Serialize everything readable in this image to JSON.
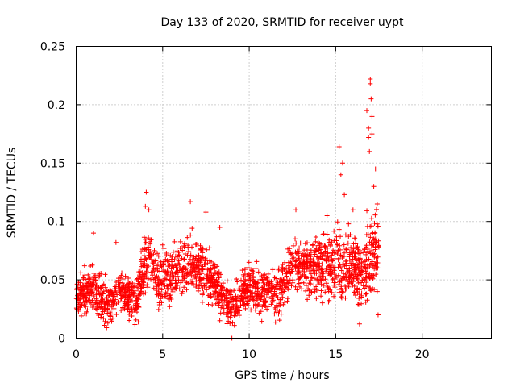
{
  "chart_data": {
    "type": "scatter",
    "title": "Day 133 of 2020, SRMTID for receiver uypt",
    "xlabel": "GPS time / hours",
    "ylabel": "SRMTID / TECUs",
    "xlim": [
      0,
      24
    ],
    "ylim": [
      0,
      0.25
    ],
    "xticks": [
      0,
      5,
      10,
      15,
      20
    ],
    "xtick_labels": [
      "0",
      "5",
      "10",
      "15",
      "20"
    ],
    "yticks": [
      0,
      0.05,
      0.1,
      0.15,
      0.2,
      0.25
    ],
    "ytick_labels": [
      "0",
      "0.05",
      "0.1",
      "0.15",
      "0.2",
      "0.25"
    ],
    "grid": true,
    "marker": "+",
    "color": "#ff0000",
    "trend": {
      "x": [
        0,
        0.5,
        1.0,
        1.5,
        2.0,
        2.5,
        3.0,
        3.5,
        4.0,
        4.3,
        4.7,
        5.0,
        5.5,
        6.0,
        6.5,
        7.0,
        7.5,
        8.0,
        8.5,
        9.0,
        9.5,
        10.0,
        10.5,
        11.0,
        11.5,
        12.0,
        12.5,
        13.0,
        13.5,
        14.0,
        14.5,
        15.0,
        15.5,
        16.0,
        16.5,
        17.0,
        17.5
      ],
      "y": [
        0.035,
        0.04,
        0.045,
        0.03,
        0.03,
        0.04,
        0.035,
        0.03,
        0.065,
        0.07,
        0.045,
        0.055,
        0.05,
        0.06,
        0.065,
        0.06,
        0.055,
        0.05,
        0.035,
        0.025,
        0.035,
        0.045,
        0.04,
        0.045,
        0.04,
        0.045,
        0.06,
        0.065,
        0.06,
        0.065,
        0.06,
        0.065,
        0.06,
        0.065,
        0.05,
        0.07,
        0.08
      ]
    },
    "spread": {
      "x": [
        0,
        1,
        2,
        3,
        4,
        5,
        6,
        7,
        8,
        9,
        10,
        11,
        12,
        13,
        14,
        15,
        16,
        17,
        17.5
      ],
      "y": [
        0.012,
        0.014,
        0.012,
        0.012,
        0.018,
        0.016,
        0.016,
        0.016,
        0.014,
        0.01,
        0.013,
        0.013,
        0.014,
        0.016,
        0.018,
        0.02,
        0.02,
        0.024,
        0.024
      ]
    },
    "x_range_data": [
      0,
      17.5
    ],
    "n_points": 2000,
    "extra_points": [
      {
        "x": 1.0,
        "y": 0.09
      },
      {
        "x": 2.3,
        "y": 0.082
      },
      {
        "x": 4.0,
        "y": 0.113
      },
      {
        "x": 4.05,
        "y": 0.125
      },
      {
        "x": 4.2,
        "y": 0.11
      },
      {
        "x": 6.6,
        "y": 0.117
      },
      {
        "x": 7.5,
        "y": 0.108
      },
      {
        "x": 8.3,
        "y": 0.095
      },
      {
        "x": 9.0,
        "y": 0.0
      },
      {
        "x": 8.3,
        "y": 0.015
      },
      {
        "x": 12.7,
        "y": 0.11
      },
      {
        "x": 14.5,
        "y": 0.105
      },
      {
        "x": 15.2,
        "y": 0.164
      },
      {
        "x": 15.4,
        "y": 0.15
      },
      {
        "x": 15.3,
        "y": 0.14
      },
      {
        "x": 15.5,
        "y": 0.123
      },
      {
        "x": 16.0,
        "y": 0.11
      },
      {
        "x": 16.4,
        "y": 0.075
      },
      {
        "x": 16.6,
        "y": 0.045
      },
      {
        "x": 16.8,
        "y": 0.195
      },
      {
        "x": 16.9,
        "y": 0.18
      },
      {
        "x": 16.9,
        "y": 0.172
      },
      {
        "x": 16.95,
        "y": 0.16
      },
      {
        "x": 17.0,
        "y": 0.218
      },
      {
        "x": 17.0,
        "y": 0.222
      },
      {
        "x": 17.05,
        "y": 0.205
      },
      {
        "x": 17.1,
        "y": 0.19
      },
      {
        "x": 17.1,
        "y": 0.175
      },
      {
        "x": 17.2,
        "y": 0.13
      },
      {
        "x": 17.3,
        "y": 0.145
      },
      {
        "x": 17.4,
        "y": 0.115
      },
      {
        "x": 17.4,
        "y": 0.04
      },
      {
        "x": 17.45,
        "y": 0.02
      },
      {
        "x": 17.3,
        "y": 0.085
      }
    ]
  }
}
